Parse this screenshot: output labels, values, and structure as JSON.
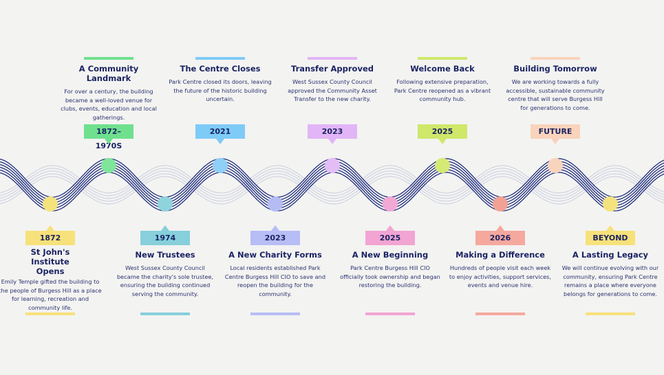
{
  "top_events": [
    {
      "tag": "1872–1970S",
      "title": "A Community Landmark",
      "desc": "For over a century, the building became a well-loved venue for clubs, events, education and local gatherings.",
      "color": "#6fe08e",
      "dot": "#7fe59a"
    },
    {
      "tag": "2021",
      "title": "The Centre Closes",
      "desc": "Park Centre closed its doors, leaving the future of the historic building uncertain.",
      "color": "#7ecbf7",
      "dot": "#8fd0f7"
    },
    {
      "tag": "2023",
      "title": "Transfer Approved",
      "desc": "West Sussex County Council approved the Community Asset Transfer to the new charity.",
      "color": "#e2b5f7",
      "dot": "#e4bdf6"
    },
    {
      "tag": "2025",
      "title": "Welcome Back",
      "desc": "Following extensive preparation, Park Centre reopened as a vibrant community hub.",
      "color": "#cfe86a",
      "dot": "#d4ea74"
    },
    {
      "tag": "FUTURE",
      "title": "Building Tomorrow",
      "desc": "We are working towards a fully accessible, sustainable community centre that will serve Burgess Hill for generations to come.",
      "color": "#f9d3bc",
      "dot": "#f8d4bd"
    }
  ],
  "bottom_events": [
    {
      "tag": "1872",
      "title": "St John's Institute Opens",
      "desc": "Emily Temple gifted the building to the people of Burgess Hill as a place for learning, recreation and community life.",
      "color": "#f7e17a",
      "dot": "#f4e27c"
    },
    {
      "tag": "1974",
      "title": "New Trustees",
      "desc": "West Sussex County Council became the charity's sole trustee, ensuring the building continued serving the community.",
      "color": "#86cfdb",
      "dot": "#8fd3dd"
    },
    {
      "tag": "2023",
      "title": "A New Charity Forms",
      "desc": "Local residents established Park Centre Burgess Hill CIO to save and reopen the building for the community.",
      "color": "#b7bdf5",
      "dot": "#b5bcf4"
    },
    {
      "tag": "2025",
      "title": "A New Beginning",
      "desc": "Park Centre Burgess Hill CIO officially took ownership and began restoring the building.",
      "color": "#f2a4d3",
      "dot": "#f2a8d4"
    },
    {
      "tag": "2026",
      "title": "Making a Difference",
      "desc": "Hundreds of people visit each week to enjoy activities, support services, events and venue hire.",
      "color": "#f5a89e",
      "dot": "#f2a195"
    },
    {
      "tag": "BEYOND",
      "title": "A Lasting Legacy",
      "desc": "We will continue evolving with our community, ensuring Park Centre remains a place where everyone belongs for generations to come.",
      "color": "#f7e17a",
      "dot": "#f4e27c"
    }
  ],
  "colors": {
    "wave": "#222f7e",
    "wave_faint": "#c6cadf"
  }
}
